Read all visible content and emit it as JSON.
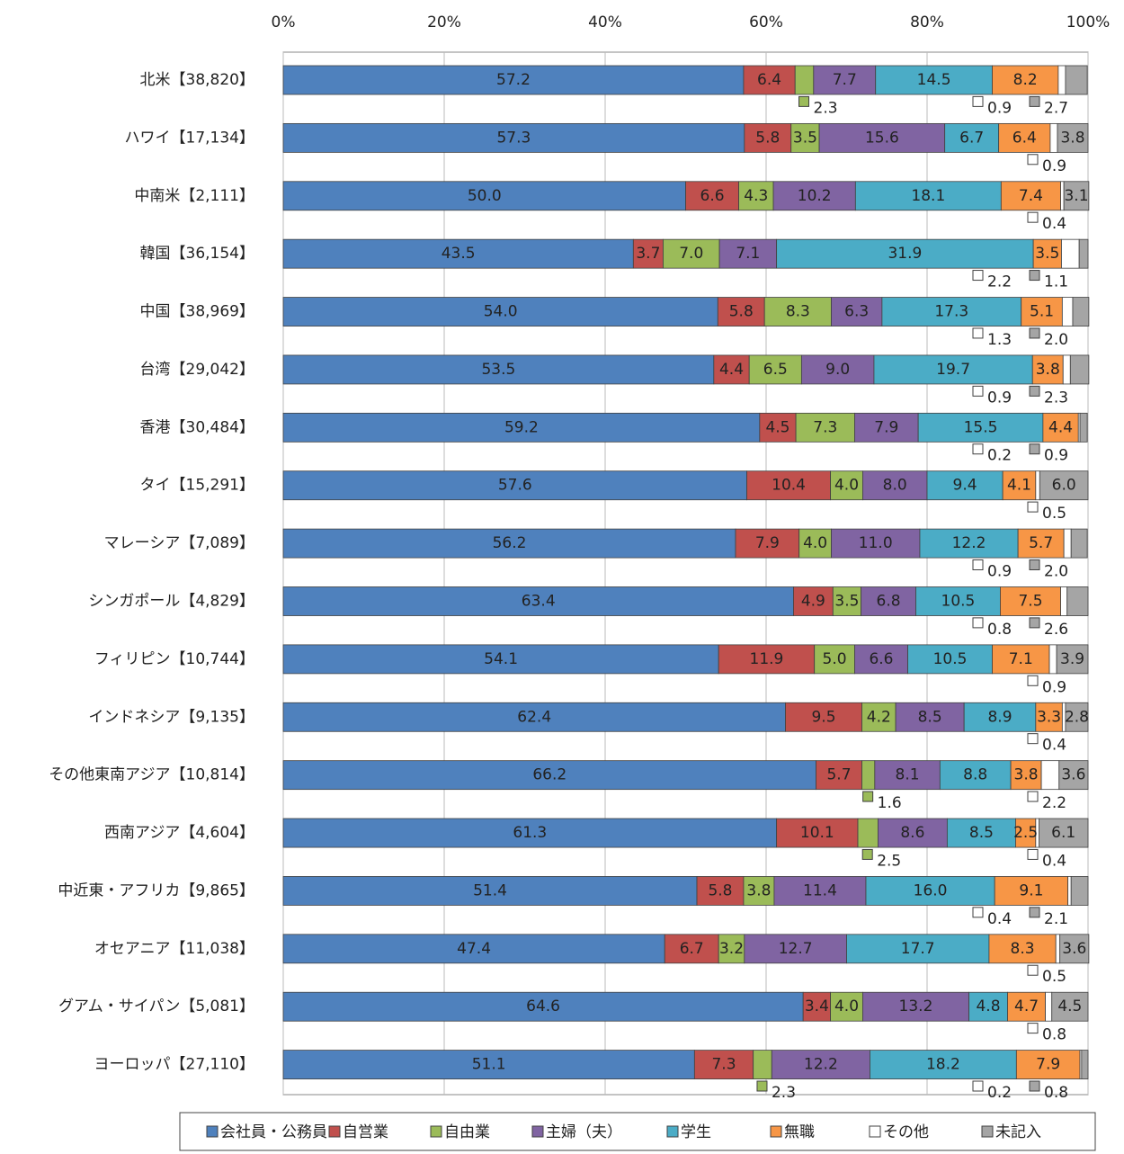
{
  "chart_data": {
    "type": "stacked_bar_horizontal",
    "categories": [
      "北米【38,820】",
      "ハワイ【17,134】",
      "中南米【2,111】",
      "韓国【36,154】",
      "中国【38,969】",
      "台湾【29,042】",
      "香港【30,484】",
      "タイ【15,291】",
      "マレーシア【7,089】",
      "シンガポール【4,829】",
      "フィリピン【10,744】",
      "インドネシア【9,135】",
      "その他東南アジア【10,814】",
      "西南アジア【4,604】",
      "中近東・アフリカ【9,865】",
      "オセアニア【11,038】",
      "グアム・サイパン【5,081】",
      "ヨーロッパ【27,110】"
    ],
    "series": [
      {
        "name": "会社員・公務員",
        "color": "#4f81bd",
        "values": [
          57.2,
          57.3,
          50.0,
          43.5,
          54.0,
          53.5,
          59.2,
          57.6,
          56.2,
          63.4,
          54.1,
          62.4,
          66.2,
          61.3,
          51.4,
          47.4,
          64.6,
          51.1
        ],
        "value_labels": [
          "57.2",
          "57.3",
          "50.0",
          "43.5",
          "54.0",
          "53.5",
          "59.2",
          "57.6",
          "56.2",
          "63.4",
          "54.1",
          "62.4",
          "66.2",
          "61.3",
          "51.4",
          "47.4",
          "64.6",
          "51.1"
        ]
      },
      {
        "name": "自営業",
        "color": "#c0504d",
        "values": [
          6.4,
          5.8,
          6.6,
          3.7,
          5.8,
          4.4,
          4.5,
          10.4,
          7.9,
          4.9,
          11.9,
          9.5,
          5.7,
          10.1,
          5.8,
          6.7,
          3.4,
          7.3
        ],
        "value_labels": [
          "6.4",
          "5.8",
          "6.6",
          "3.7",
          "5.8",
          "4.4",
          "4.5",
          "10.4",
          "7.9",
          "4.9",
          "11.9",
          "9.5",
          "5.7",
          "10.1",
          "5.8",
          "6.7",
          "3.4",
          "7.3"
        ]
      },
      {
        "name": "自由業",
        "color": "#9bbb59",
        "values": [
          2.3,
          3.5,
          4.3,
          7.0,
          8.3,
          6.5,
          7.3,
          4.0,
          4.0,
          3.5,
          5.0,
          4.2,
          1.6,
          2.5,
          3.8,
          3.2,
          4.0,
          2.3
        ],
        "value_labels": [
          "2.3",
          "3.5",
          "4.3",
          "7.0",
          "8.3",
          "6.5",
          "7.3",
          "4.0",
          "4.0",
          "3.5",
          "5.0",
          "4.2",
          "1.6",
          "2.5",
          "3.8",
          "3.2",
          "4.0",
          "2.3"
        ]
      },
      {
        "name": "主婦（夫）",
        "color": "#8064a2",
        "values": [
          7.7,
          15.6,
          10.2,
          7.1,
          6.3,
          9.0,
          7.9,
          8.0,
          11.0,
          6.8,
          6.6,
          8.5,
          8.1,
          8.6,
          11.4,
          12.7,
          13.2,
          12.2
        ],
        "value_labels": [
          "7.7",
          "15.6",
          "10.2",
          "7.1",
          "6.3",
          "9.0",
          "7.9",
          "8.0",
          "11.0",
          "6.8",
          "6.6",
          "8.5",
          "8.1",
          "8.6",
          "11.4",
          "12.7",
          "13.2",
          "12.2"
        ]
      },
      {
        "name": "学生",
        "color": "#4bacc6",
        "values": [
          14.5,
          6.7,
          18.1,
          31.9,
          17.3,
          19.7,
          15.5,
          9.4,
          12.2,
          10.5,
          10.5,
          8.9,
          8.8,
          8.5,
          16.0,
          17.7,
          4.8,
          18.2
        ],
        "value_labels": [
          "14.5",
          "6.7",
          "18.1",
          "31.9",
          "17.3",
          "19.7",
          "15.5",
          "9.4",
          "12.2",
          "10.5",
          "10.5",
          "8.9",
          "8.8",
          "8.5",
          "16.0",
          "17.7",
          "4.8",
          "18.2"
        ]
      },
      {
        "name": "無職",
        "color": "#f79646",
        "values": [
          8.2,
          6.4,
          7.4,
          3.5,
          5.1,
          3.8,
          4.4,
          4.1,
          5.7,
          7.5,
          7.1,
          3.3,
          3.8,
          2.5,
          9.1,
          8.3,
          4.7,
          7.9
        ],
        "value_labels": [
          "8.2",
          "6.4",
          "7.4",
          "3.5",
          "5.1",
          "3.8",
          "4.4",
          "4.1",
          "5.7",
          "7.5",
          "7.1",
          "3.3",
          "3.8",
          "2.5",
          "9.1",
          "8.3",
          "4.7",
          "7.9"
        ]
      },
      {
        "name": "その他",
        "color": "#ffffff",
        "values": [
          0.9,
          0.9,
          0.4,
          2.2,
          1.3,
          0.9,
          0.2,
          0.5,
          0.9,
          0.8,
          0.9,
          0.4,
          2.2,
          0.4,
          0.4,
          0.5,
          0.8,
          0.2
        ],
        "value_labels": [
          "0.9",
          "0.9",
          "0.4",
          "2.2",
          "1.3",
          "0.9",
          "0.2",
          "0.5",
          "0.9",
          "0.8",
          "0.9",
          "0.4",
          "2.2",
          "0.4",
          "0.4",
          "0.5",
          "0.8",
          "0.2"
        ]
      },
      {
        "name": "未記入",
        "color": "#a5a5a5",
        "values": [
          2.7,
          3.8,
          3.1,
          1.1,
          2.0,
          2.3,
          0.9,
          6.0,
          2.0,
          2.6,
          3.9,
          2.8,
          3.6,
          6.1,
          2.1,
          3.6,
          4.5,
          0.8
        ],
        "value_labels": [
          "2.7",
          "3.8",
          "3.1",
          "1.1",
          "2.0",
          "2.3",
          "0.9",
          "6.0",
          "2.0",
          "2.6",
          "3.9",
          "2.8",
          "3.6",
          "6.1",
          "2.1",
          "3.6",
          "4.5",
          "0.8"
        ]
      }
    ],
    "xlim": [
      0,
      100
    ],
    "xticks": [
      {
        "value": 0,
        "label": "0%"
      },
      {
        "value": 20,
        "label": "20%"
      },
      {
        "value": 40,
        "label": "40%"
      },
      {
        "value": 60,
        "label": "60%"
      },
      {
        "value": 80,
        "label": "80%"
      },
      {
        "value": 100,
        "label": "100%"
      }
    ],
    "grid": true,
    "legend": "bottom"
  }
}
